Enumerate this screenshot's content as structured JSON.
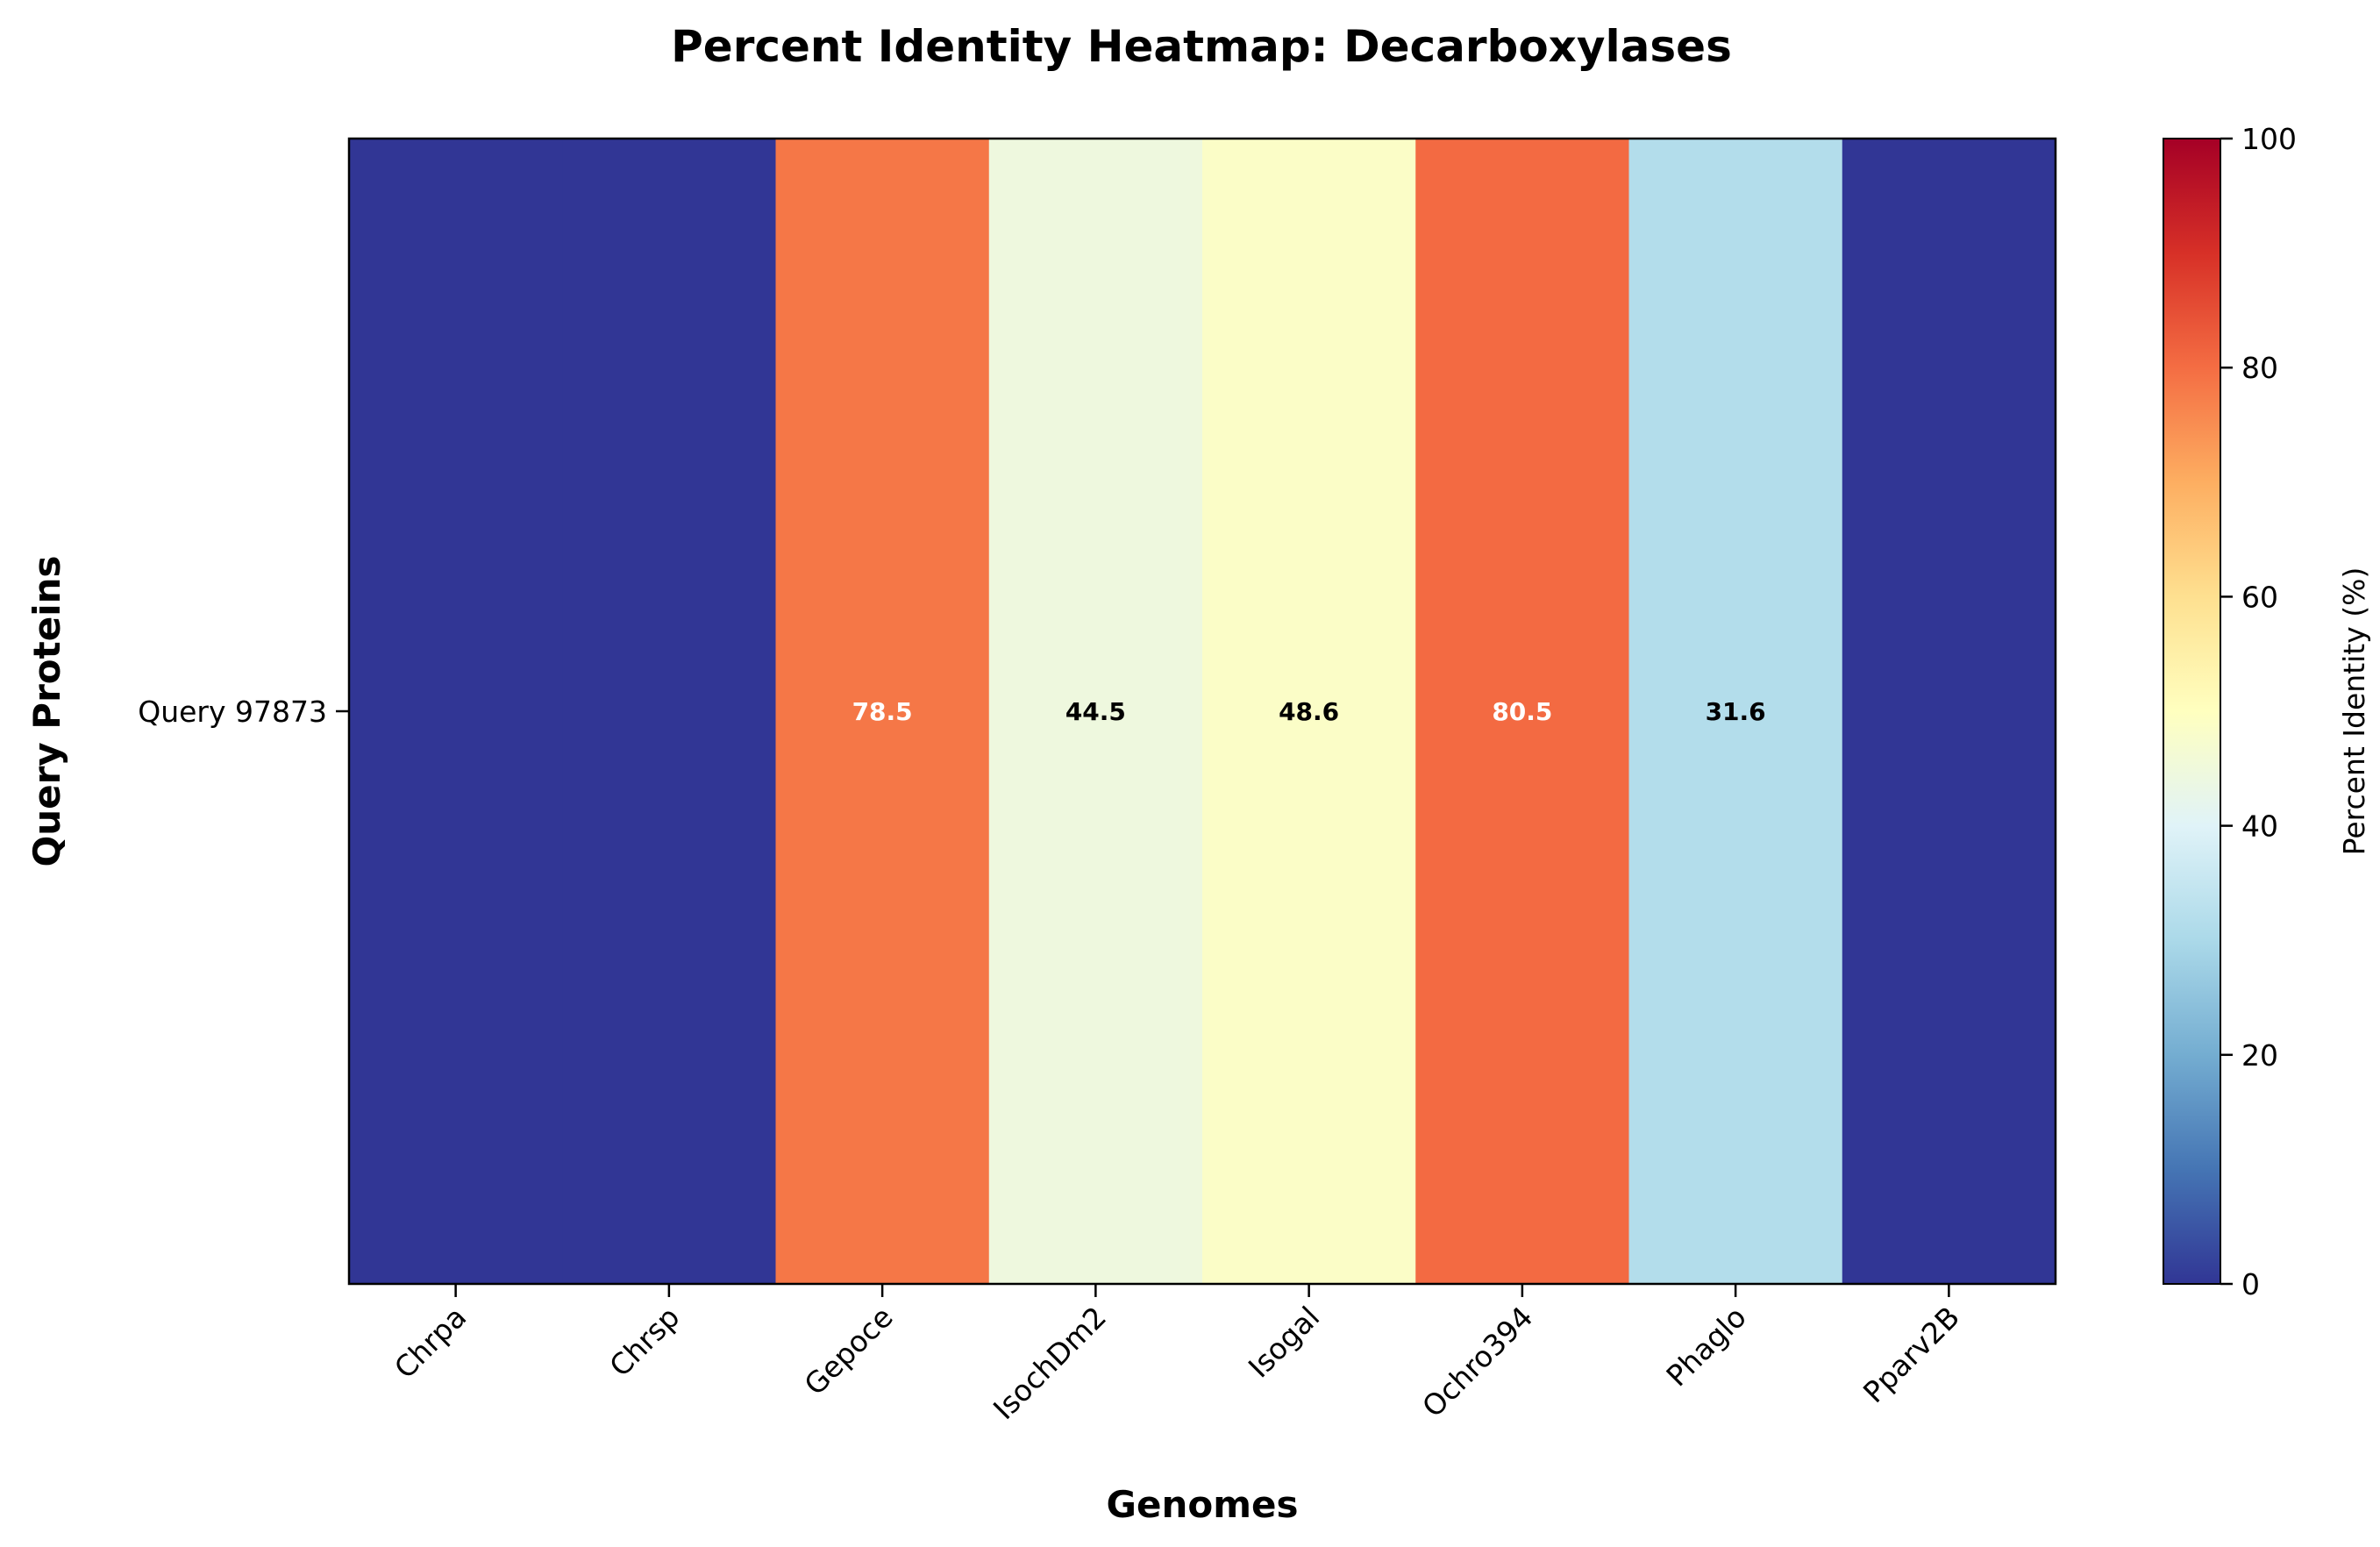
{
  "chart_data": {
    "type": "heatmap",
    "title": "Percent Identity Heatmap: Decarboxylases",
    "xlabel": "Genomes",
    "ylabel": "Query Proteins",
    "categories": [
      "Chrpa",
      "Chrsp",
      "Gepoce",
      "IsochDm2",
      "Isogal",
      "Ochro394",
      "Phaglo",
      "Pparv2B"
    ],
    "rows": [
      "Query 97873"
    ],
    "values": [
      [
        0,
        0,
        78.5,
        44.5,
        48.6,
        80.5,
        31.6,
        0
      ]
    ],
    "value_labels": [
      [
        "",
        "",
        "78.5",
        "44.5",
        "48.6",
        "80.5",
        "31.6",
        ""
      ]
    ],
    "colormap": "RdYlBu_r",
    "colorbar": {
      "label": "Percent Identity (%)",
      "range": [
        0,
        100
      ],
      "ticks": [
        0,
        20,
        40,
        60,
        80,
        100
      ],
      "tick_labels": [
        "0",
        "20",
        "40",
        "60",
        "80",
        "100"
      ]
    },
    "grid": false
  }
}
